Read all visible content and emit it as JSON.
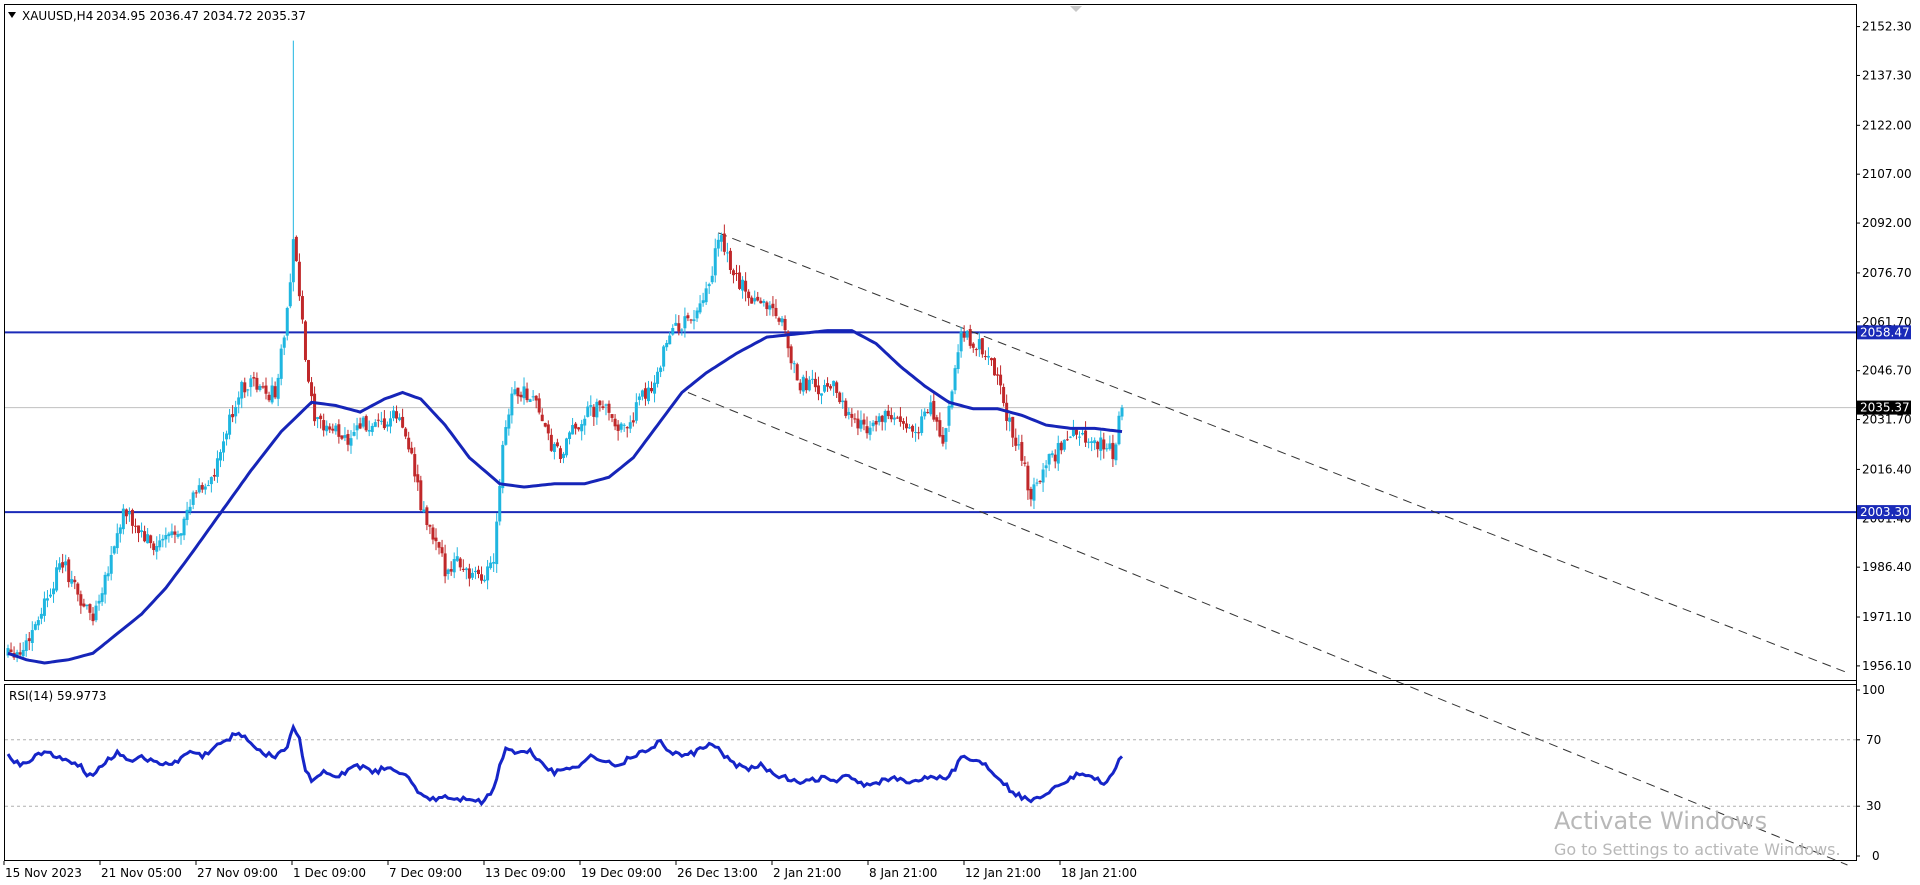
{
  "header": {
    "symbol": "XAUUSD,H4",
    "ohlc": "2034.95 2036.47 2034.72 2035.37"
  },
  "rsi_header": {
    "label": "RSI(14) 59.9773"
  },
  "watermark": {
    "line1": "Activate Windows",
    "line2": "Go to Settings to activate Windows."
  },
  "colors": {
    "bull": "#1fb6e0",
    "bear": "#c0282a",
    "ma": "#1625b8",
    "level_line": "#1a2ab8",
    "rsi": "#1625c8"
  },
  "chart_data": {
    "type": "candlestick",
    "symbol": "XAUUSD",
    "timeframe": "H4",
    "price_ticks": [
      "2152.30",
      "2137.30",
      "2122.00",
      "2107.00",
      "2092.00",
      "2076.70",
      "2061.70",
      "2046.70",
      "2031.70",
      "2016.40",
      "2001.40",
      "1986.40",
      "1971.10",
      "1956.10"
    ],
    "ylim": [
      1953,
      2158
    ],
    "time_labels": [
      "15 Nov 2023",
      "21 Nov 05:00",
      "27 Nov 09:00",
      "1 Dec 09:00",
      "7 Dec 09:00",
      "13 Dec 09:00",
      "19 Dec 09:00",
      "26 Dec 13:00",
      "2 Jan 21:00",
      "8 Jan 21:00",
      "12 Jan 21:00",
      "18 Jan 21:00"
    ],
    "current_price": "2035.37",
    "current_price_value": 2035.37,
    "horizontal_levels": [
      {
        "label": "2058.47",
        "value": 2058.47
      },
      {
        "label": "2003.30",
        "value": 2003.3
      }
    ],
    "anchors": [
      [
        0,
        1962
      ],
      [
        4,
        1960
      ],
      [
        8,
        1967
      ],
      [
        14,
        1980
      ],
      [
        18,
        1988
      ],
      [
        24,
        1976
      ],
      [
        28,
        1971
      ],
      [
        34,
        1990
      ],
      [
        38,
        2003
      ],
      [
        42,
        1999
      ],
      [
        48,
        1992
      ],
      [
        52,
        1995
      ],
      [
        58,
        2000
      ],
      [
        62,
        2010
      ],
      [
        68,
        2014
      ],
      [
        72,
        2028
      ],
      [
        76,
        2040
      ],
      [
        80,
        2044
      ],
      [
        84,
        2040
      ],
      [
        88,
        2040
      ],
      [
        92,
        2064
      ],
      [
        94,
        2088
      ],
      [
        96,
        2070
      ],
      [
        98,
        2050
      ],
      [
        101,
        2030
      ],
      [
        104,
        2030
      ],
      [
        108,
        2028
      ],
      [
        112,
        2026
      ],
      [
        116,
        2031
      ],
      [
        120,
        2028
      ],
      [
        124,
        2030
      ],
      [
        128,
        2033
      ],
      [
        132,
        2025
      ],
      [
        136,
        2005
      ],
      [
        140,
        1995
      ],
      [
        144,
        1986
      ],
      [
        148,
        1989
      ],
      [
        152,
        1984
      ],
      [
        156,
        1982
      ],
      [
        160,
        1990
      ],
      [
        163,
        2025
      ],
      [
        166,
        2040
      ],
      [
        170,
        2040
      ],
      [
        174,
        2038
      ],
      [
        178,
        2025
      ],
      [
        182,
        2020
      ],
      [
        186,
        2028
      ],
      [
        190,
        2033
      ],
      [
        194,
        2035
      ],
      [
        198,
        2035
      ],
      [
        202,
        2028
      ],
      [
        206,
        2033
      ],
      [
        210,
        2040
      ],
      [
        214,
        2045
      ],
      [
        216,
        2055
      ],
      [
        220,
        2060
      ],
      [
        224,
        2062
      ],
      [
        228,
        2065
      ],
      [
        232,
        2075
      ],
      [
        234,
        2089
      ],
      [
        236,
        2083
      ],
      [
        240,
        2075
      ],
      [
        244,
        2070
      ],
      [
        248,
        2068
      ],
      [
        252,
        2066
      ],
      [
        256,
        2060
      ],
      [
        260,
        2042
      ],
      [
        264,
        2043
      ],
      [
        268,
        2040
      ],
      [
        272,
        2043
      ],
      [
        276,
        2035
      ],
      [
        280,
        2030
      ],
      [
        284,
        2030
      ],
      [
        288,
        2032
      ],
      [
        292,
        2032
      ],
      [
        296,
        2028
      ],
      [
        300,
        2030
      ],
      [
        304,
        2035
      ],
      [
        308,
        2025
      ],
      [
        312,
        2045
      ],
      [
        314,
        2058
      ],
      [
        318,
        2055
      ],
      [
        322,
        2053
      ],
      [
        326,
        2044
      ],
      [
        330,
        2030
      ],
      [
        334,
        2020
      ],
      [
        337,
        2008
      ],
      [
        340,
        2015
      ],
      [
        344,
        2020
      ],
      [
        348,
        2025
      ],
      [
        352,
        2028
      ],
      [
        356,
        2026
      ],
      [
        360,
        2024
      ],
      [
        364,
        2022
      ],
      [
        367,
        2035.37
      ]
    ],
    "ma_anchors": [
      [
        0,
        1960
      ],
      [
        6,
        1958
      ],
      [
        12,
        1957
      ],
      [
        20,
        1958
      ],
      [
        28,
        1960
      ],
      [
        36,
        1966
      ],
      [
        44,
        1972
      ],
      [
        52,
        1980
      ],
      [
        60,
        1990
      ],
      [
        70,
        2003
      ],
      [
        80,
        2016
      ],
      [
        90,
        2028
      ],
      [
        100,
        2037
      ],
      [
        108,
        2036
      ],
      [
        116,
        2034
      ],
      [
        124,
        2038
      ],
      [
        130,
        2040
      ],
      [
        136,
        2038
      ],
      [
        144,
        2030
      ],
      [
        152,
        2020
      ],
      [
        162,
        2012
      ],
      [
        170,
        2011
      ],
      [
        180,
        2012
      ],
      [
        190,
        2012
      ],
      [
        198,
        2014
      ],
      [
        206,
        2020
      ],
      [
        214,
        2030
      ],
      [
        222,
        2040
      ],
      [
        230,
        2046
      ],
      [
        240,
        2052
      ],
      [
        250,
        2057
      ],
      [
        260,
        2058
      ],
      [
        270,
        2059
      ],
      [
        278,
        2059
      ],
      [
        286,
        2055
      ],
      [
        294,
        2048
      ],
      [
        302,
        2042
      ],
      [
        310,
        2037
      ],
      [
        318,
        2035
      ],
      [
        326,
        2035
      ],
      [
        334,
        2033
      ],
      [
        342,
        2030
      ],
      [
        350,
        2029
      ],
      [
        358,
        2029
      ],
      [
        367,
        2028
      ]
    ],
    "channel_lines": [
      {
        "x": [
          234,
          606
        ],
        "y": [
          2089,
          1954
        ]
      },
      {
        "x": [
          224,
          606
        ],
        "y": [
          2040,
          1895
        ]
      }
    ],
    "rsi": {
      "label": "RSI(14)",
      "value": 59.9773,
      "ylim": [
        0,
        100
      ],
      "levels": [
        30,
        70
      ],
      "ticks": [
        "100",
        "70",
        "30",
        "0"
      ],
      "anchors": [
        [
          0,
          60
        ],
        [
          4,
          55
        ],
        [
          8,
          58
        ],
        [
          12,
          64
        ],
        [
          16,
          60
        ],
        [
          20,
          56
        ],
        [
          24,
          54
        ],
        [
          26,
          48
        ],
        [
          28,
          50
        ],
        [
          32,
          57
        ],
        [
          36,
          62
        ],
        [
          40,
          58
        ],
        [
          44,
          60
        ],
        [
          48,
          56
        ],
        [
          52,
          55
        ],
        [
          56,
          57
        ],
        [
          60,
          63
        ],
        [
          64,
          60
        ],
        [
          68,
          65
        ],
        [
          72,
          70
        ],
        [
          76,
          75
        ],
        [
          80,
          68
        ],
        [
          84,
          62
        ],
        [
          88,
          60
        ],
        [
          92,
          66
        ],
        [
          94,
          78
        ],
        [
          96,
          70
        ],
        [
          98,
          52
        ],
        [
          100,
          46
        ],
        [
          104,
          50
        ],
        [
          108,
          47
        ],
        [
          112,
          52
        ],
        [
          116,
          54
        ],
        [
          120,
          50
        ],
        [
          124,
          53
        ],
        [
          128,
          52
        ],
        [
          132,
          46
        ],
        [
          136,
          37
        ],
        [
          140,
          34
        ],
        [
          144,
          36
        ],
        [
          148,
          34
        ],
        [
          152,
          35
        ],
        [
          156,
          32
        ],
        [
          160,
          40
        ],
        [
          162,
          55
        ],
        [
          164,
          65
        ],
        [
          168,
          62
        ],
        [
          172,
          63
        ],
        [
          176,
          56
        ],
        [
          180,
          50
        ],
        [
          184,
          53
        ],
        [
          188,
          55
        ],
        [
          192,
          60
        ],
        [
          196,
          58
        ],
        [
          200,
          54
        ],
        [
          204,
          58
        ],
        [
          208,
          62
        ],
        [
          212,
          64
        ],
        [
          214,
          70
        ],
        [
          218,
          63
        ],
        [
          222,
          60
        ],
        [
          226,
          62
        ],
        [
          230,
          66
        ],
        [
          232,
          68
        ],
        [
          236,
          60
        ],
        [
          240,
          55
        ],
        [
          244,
          52
        ],
        [
          248,
          55
        ],
        [
          252,
          50
        ],
        [
          256,
          47
        ],
        [
          260,
          44
        ],
        [
          264,
          45
        ],
        [
          268,
          47
        ],
        [
          272,
          45
        ],
        [
          276,
          48
        ],
        [
          280,
          44
        ],
        [
          284,
          43
        ],
        [
          288,
          45
        ],
        [
          292,
          47
        ],
        [
          296,
          44
        ],
        [
          300,
          46
        ],
        [
          304,
          49
        ],
        [
          308,
          46
        ],
        [
          312,
          53
        ],
        [
          314,
          60
        ],
        [
          318,
          58
        ],
        [
          322,
          55
        ],
        [
          326,
          48
        ],
        [
          330,
          40
        ],
        [
          334,
          35
        ],
        [
          338,
          34
        ],
        [
          342,
          38
        ],
        [
          346,
          43
        ],
        [
          350,
          47
        ],
        [
          354,
          50
        ],
        [
          358,
          46
        ],
        [
          362,
          44
        ],
        [
          367,
          60
        ]
      ]
    }
  }
}
